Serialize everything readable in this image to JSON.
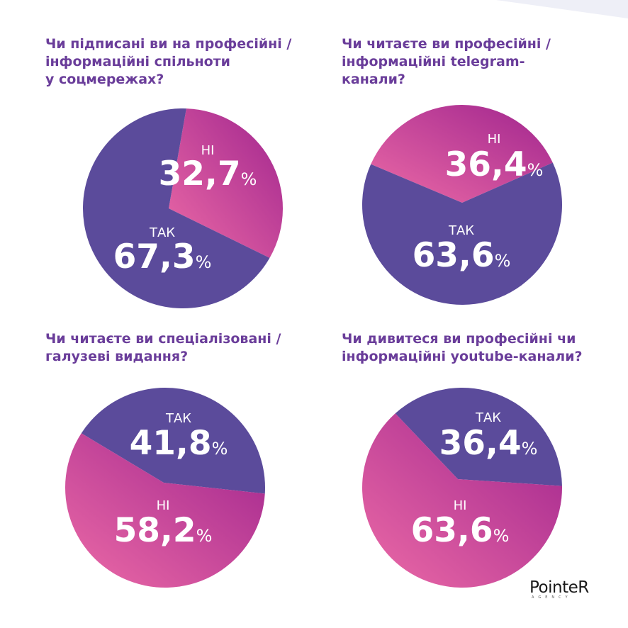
{
  "colors": {
    "purple": "#5b4b9b",
    "pink_dark": "#a0258e",
    "pink_light": "#ec6aa6",
    "question": "#6a3d9a"
  },
  "chart_data": [
    {
      "type": "pie",
      "title": "Чи підписані ви на професійні /\nінформаційні спільноти\nу соцмережах?",
      "slices": [
        {
          "label": "НІ",
          "value": 32.7,
          "display": "32,7",
          "unit": "%"
        },
        {
          "label": "ТАК",
          "value": 67.3,
          "display": "67,3",
          "unit": "%"
        }
      ]
    },
    {
      "type": "pie",
      "title": "Чи читаєте ви професійні /\nінформаційні telegram-\nканали?",
      "slices": [
        {
          "label": "НІ",
          "value": 36.4,
          "display": "36,4",
          "unit": "%"
        },
        {
          "label": "ТАК",
          "value": 63.6,
          "display": "63,6",
          "unit": "%"
        }
      ]
    },
    {
      "type": "pie",
      "title": "Чи читаєте ви спеціалізовані /\nгалузеві видання?",
      "slices": [
        {
          "label": "ТАК",
          "value": 41.8,
          "display": "41,8",
          "unit": "%"
        },
        {
          "label": "НІ",
          "value": 58.2,
          "display": "58,2",
          "unit": "%"
        }
      ]
    },
    {
      "type": "pie",
      "title": "Чи дивитеся ви професійні чи\nінформаційні youtube-канали?",
      "slices": [
        {
          "label": "ТАК",
          "value": 36.4,
          "display": "36,4",
          "unit": "%"
        },
        {
          "label": "НІ",
          "value": 63.6,
          "display": "63,6",
          "unit": "%"
        }
      ]
    }
  ],
  "logo": {
    "word": "PointeR",
    "sub": "AGENCY"
  }
}
